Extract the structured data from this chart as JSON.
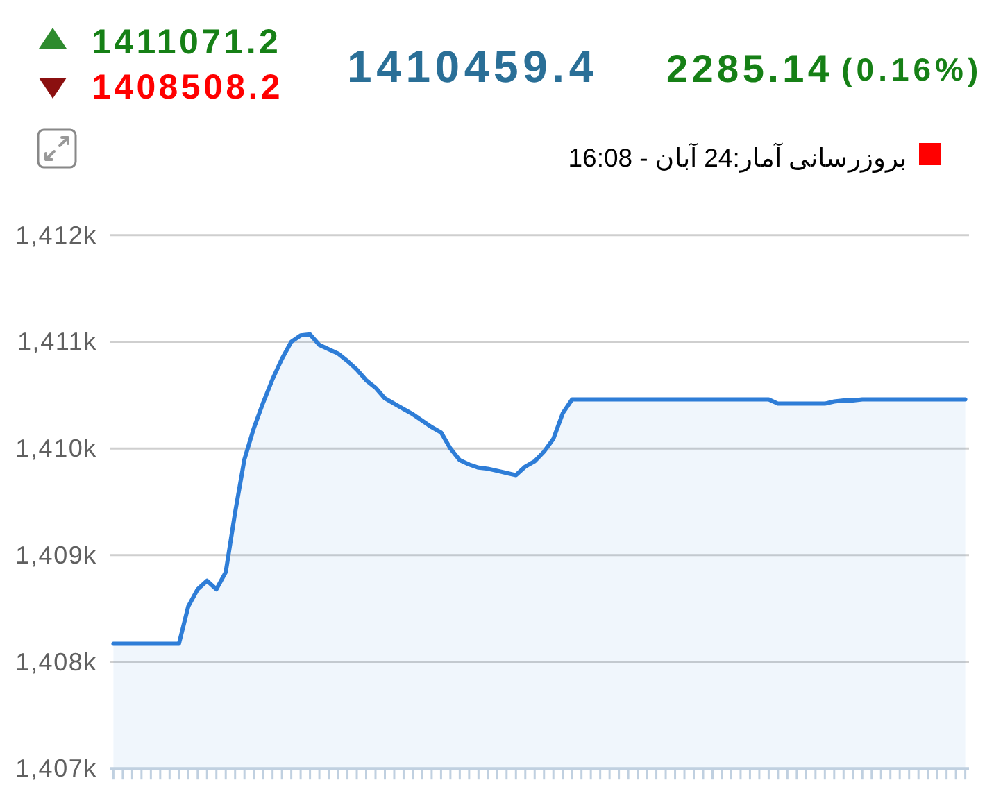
{
  "chart_data": {
    "type": "area",
    "categories": [
      null,
      null,
      null,
      null,
      null,
      null,
      null,
      null,
      null,
      null,
      null,
      null,
      null,
      null,
      null,
      null,
      null,
      null,
      null,
      null,
      null,
      null,
      null,
      null,
      null,
      null,
      null,
      null,
      null,
      null,
      null,
      null,
      null,
      null,
      null,
      null,
      null,
      null,
      null,
      null,
      null,
      null,
      null,
      null,
      null,
      null,
      null,
      null,
      null,
      null,
      null,
      null,
      null,
      null,
      null,
      null,
      null,
      null,
      null,
      null,
      null,
      null,
      null,
      null,
      null,
      null,
      null,
      null,
      null,
      null,
      null,
      null,
      null,
      null,
      null,
      null,
      null,
      null,
      null,
      null,
      null,
      null,
      null,
      null,
      null,
      null,
      null,
      null,
      null,
      null,
      null,
      null
    ],
    "series": [
      {
        "color": "#2e7dd7",
        "values": [
          1408170,
          1408170,
          1408170,
          1408170,
          1408170,
          1408170,
          1408170,
          1408170,
          1408520,
          1408680,
          1408760,
          1408680,
          1408840,
          1409400,
          1409900,
          1410190,
          1410430,
          1410650,
          1410840,
          1411000,
          1411060,
          1411070,
          1410970,
          1410930,
          1410890,
          1410820,
          1410740,
          1410640,
          1410570,
          1410470,
          1410420,
          1410370,
          1410320,
          1410260,
          1410200,
          1410150,
          1410000,
          1409890,
          1409850,
          1409820,
          1409810,
          1409790,
          1409770,
          1409750,
          1409830,
          1409880,
          1409970,
          1410090,
          1410330,
          1410460,
          1410460,
          1410460,
          1410460,
          1410460,
          1410460,
          1410460,
          1410460,
          1410460,
          1410460,
          1410460,
          1410460,
          1410460,
          1410460,
          1410460,
          1410460,
          1410460,
          1410460,
          1410460,
          1410460,
          1410460,
          1410460,
          1410420,
          1410420,
          1410420,
          1410420,
          1410420,
          1410420,
          1410440,
          1410450,
          1410450,
          1410460,
          1410460,
          1410460,
          1410460,
          1410460,
          1410460,
          1410460,
          1410460,
          1410460,
          1410460,
          1410460,
          1410460
        ]
      }
    ],
    "ylim": [
      1407000,
      1412000
    ],
    "yticks": [
      {
        "value": 1407000,
        "label": "1,407k"
      },
      {
        "value": 1408000,
        "label": "1,408k"
      },
      {
        "value": 1409000,
        "label": "1,409k"
      },
      {
        "value": 1410000,
        "label": "1,410k"
      },
      {
        "value": 1411000,
        "label": "1,411k"
      },
      {
        "value": 1412000,
        "label": "1,412k"
      }
    ],
    "grid": "y",
    "annotations": [
      "1411071.2",
      "1408508.2",
      "1410459.4",
      "2285.14",
      "(0.16%)",
      "بروزرسانی آمار:24 آبان - 16:08"
    ]
  }
}
